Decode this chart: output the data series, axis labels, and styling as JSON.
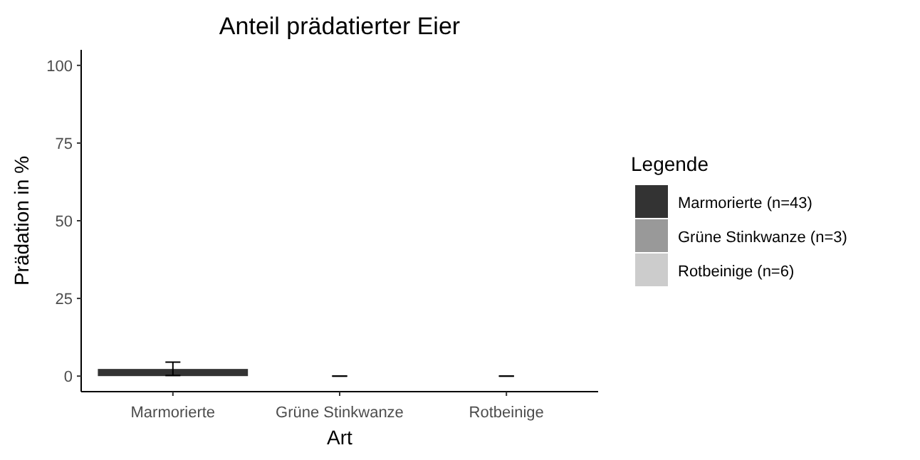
{
  "chart_data": {
    "type": "bar",
    "title": "Anteil prädatierter Eier",
    "xlabel": "Art",
    "ylabel": "Prädation in %",
    "legend_title": "Legende",
    "categories": [
      "Marmorierte",
      "Grüne Stinkwanze",
      "Rotbeinige"
    ],
    "ylim": [
      -5,
      105
    ],
    "yticks": [
      0,
      25,
      50,
      75,
      100
    ],
    "grid": false,
    "legend": "right",
    "series": [
      {
        "name": "Marmorierte (n=43)",
        "color": "#333333",
        "values": [
          2.3,
          null,
          null
        ],
        "errors": [
          [
            0.2,
            4.5
          ],
          null,
          null
        ]
      },
      {
        "name": "Grüne Stinkwanze (n=3)",
        "color": "#999999",
        "values": [
          null,
          0,
          null
        ],
        "errors": [
          null,
          [
            0,
            0
          ],
          null
        ]
      },
      {
        "name": "Rotbeinige (n=6)",
        "color": "#cccccc",
        "values": [
          null,
          null,
          0
        ],
        "errors": [
          null,
          null,
          [
            0,
            0
          ]
        ]
      }
    ]
  }
}
